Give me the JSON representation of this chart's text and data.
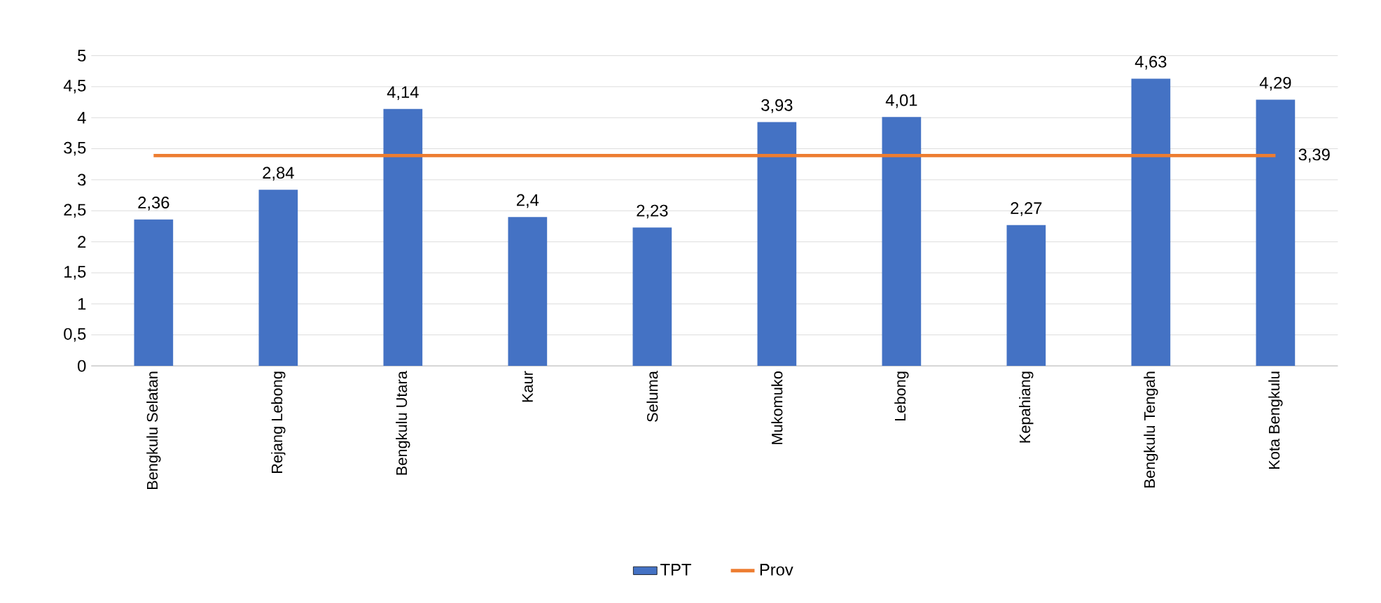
{
  "chart_data": {
    "type": "bar",
    "categories": [
      "Bengkulu Selatan",
      "Rejang Lebong",
      "Bengkulu Utara",
      "Kaur",
      "Seluma",
      "Mukomuko",
      "Lebong",
      "Kepahiang",
      "Bengkulu Tengah",
      "Kota Bengkulu"
    ],
    "series": [
      {
        "name": "TPT",
        "color": "#4472c4",
        "values": [
          2.36,
          2.84,
          4.14,
          2.4,
          2.23,
          3.93,
          4.01,
          2.27,
          4.63,
          4.29
        ],
        "value_labels": [
          "2,36",
          "2,84",
          "4,14",
          "2,4",
          "2,23",
          "3,93",
          "4,01",
          "2,27",
          "4,63",
          "4,29"
        ]
      },
      {
        "name": "Prov",
        "type": "line",
        "color": "#ed7d31",
        "values": [
          3.39,
          3.39,
          3.39,
          3.39,
          3.39,
          3.39,
          3.39,
          3.39,
          3.39,
          3.39
        ],
        "value_labels": [
          null,
          null,
          null,
          null,
          null,
          null,
          null,
          null,
          null,
          "3,39"
        ]
      }
    ],
    "ylim": [
      0,
      5
    ],
    "yticks": [
      0,
      {
        "value": 0.5,
        "label": "0,5"
      },
      1,
      {
        "value": 1.5,
        "label": "1,5"
      },
      2,
      {
        "value": 2.5,
        "label": "2,5"
      },
      3,
      {
        "value": 3.5,
        "label": "3,5"
      },
      4,
      {
        "value": 4.5,
        "label": "4,5"
      },
      5
    ],
    "grid": "y",
    "legend": "bottom"
  }
}
